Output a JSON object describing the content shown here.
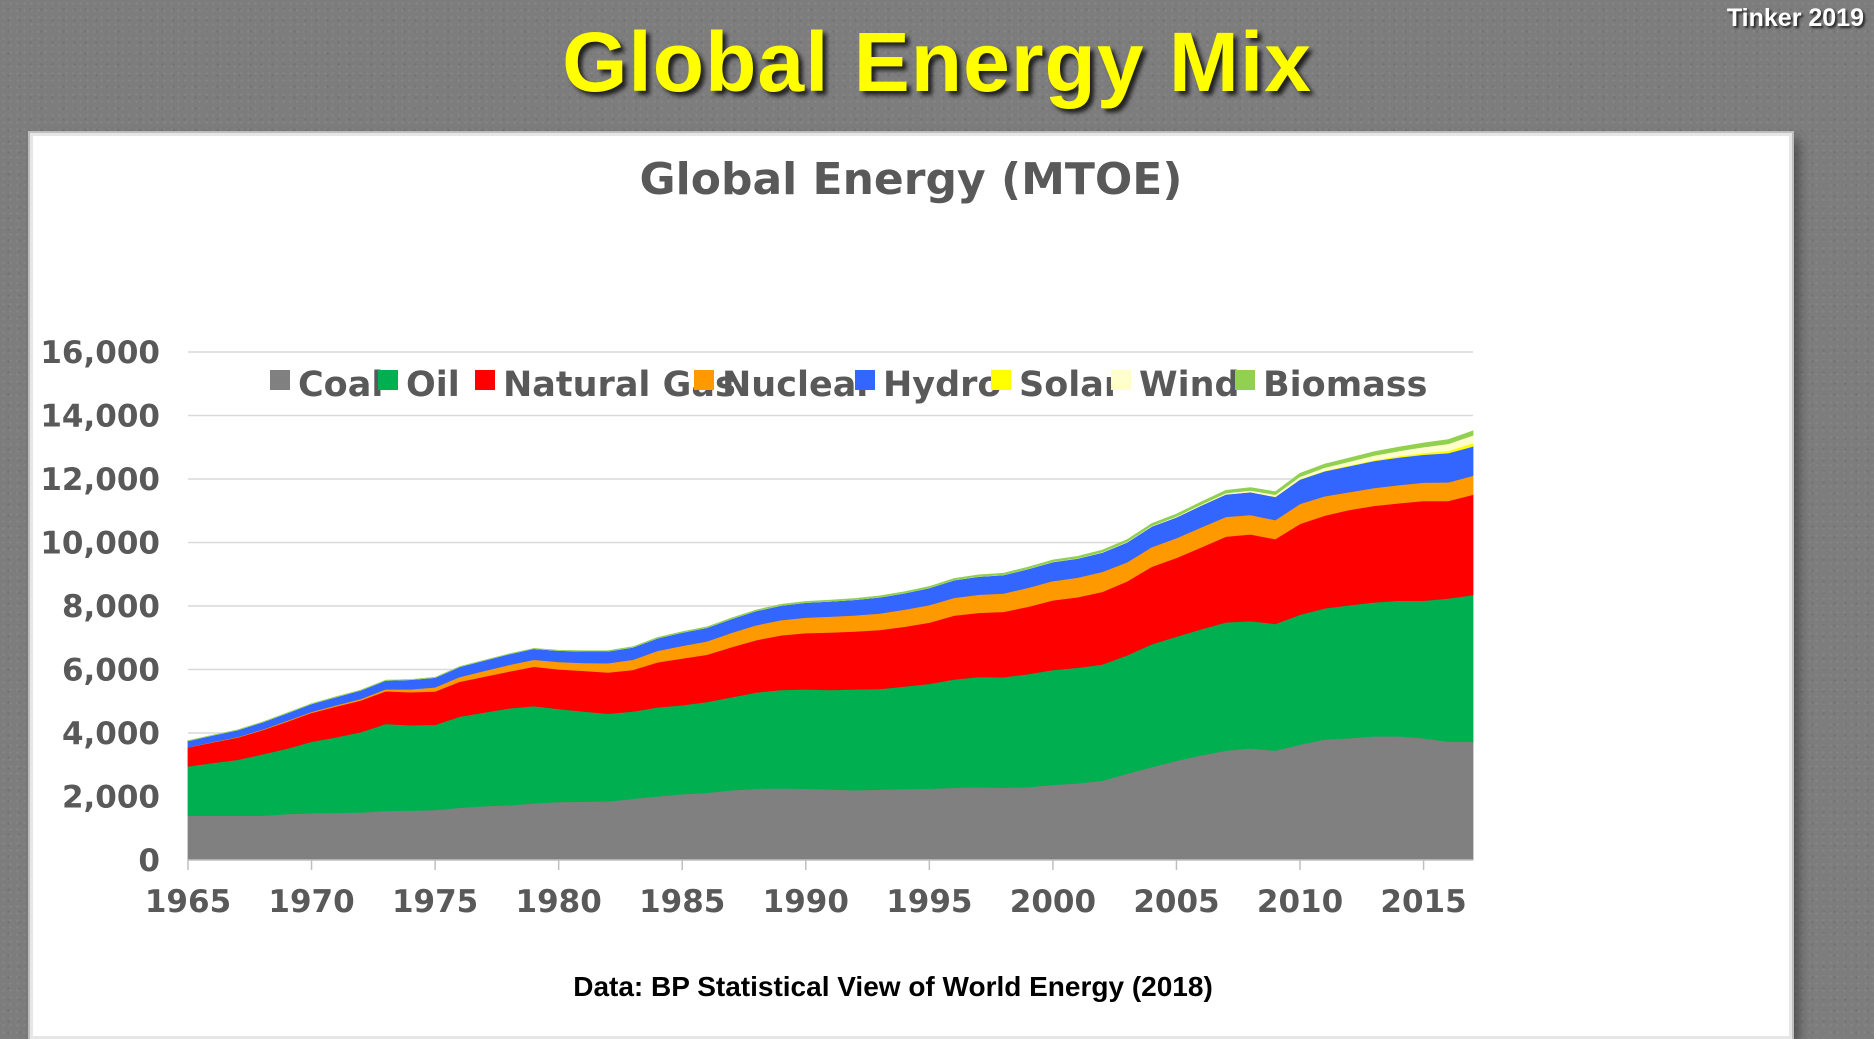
{
  "slide": {
    "title": "Global Energy Mix",
    "author": "Tinker 2019",
    "source": "Data: BP Statistical View of World Energy (2018)"
  },
  "chart_data": {
    "type": "area",
    "stacked": true,
    "title": "Global Energy (MTOE)",
    "xlabel": "",
    "ylabel": "",
    "xlim": [
      1965,
      2017
    ],
    "ylim": [
      0,
      16000
    ],
    "yticks": [
      "0",
      "2,000",
      "4,000",
      "6,000",
      "8,000",
      "10,000",
      "12,000",
      "14,000",
      "16,000"
    ],
    "yticks_values": [
      0,
      2000,
      4000,
      6000,
      8000,
      10000,
      12000,
      14000,
      16000
    ],
    "xticks": [
      "1965",
      "1970",
      "1975",
      "1980",
      "1985",
      "1990",
      "1995",
      "2000",
      "2005",
      "2010",
      "2015"
    ],
    "xticks_values": [
      1965,
      1970,
      1975,
      1980,
      1985,
      1990,
      1995,
      2000,
      2005,
      2010,
      2015
    ],
    "grid": "horizontal",
    "legend_position": "top",
    "x": [
      1965,
      1966,
      1967,
      1968,
      1969,
      1970,
      1971,
      1972,
      1973,
      1974,
      1975,
      1976,
      1977,
      1978,
      1979,
      1980,
      1981,
      1982,
      1983,
      1984,
      1985,
      1986,
      1987,
      1988,
      1989,
      1990,
      1991,
      1992,
      1993,
      1994,
      1995,
      1996,
      1997,
      1998,
      1999,
      2000,
      2001,
      2002,
      2003,
      2004,
      2005,
      2006,
      2007,
      2008,
      2009,
      2010,
      2011,
      2012,
      2013,
      2014,
      2015,
      2016,
      2017
    ],
    "series": [
      {
        "name": "Coal",
        "color": "#808080",
        "values": [
          1400,
          1400,
          1400,
          1400,
          1450,
          1480,
          1490,
          1500,
          1550,
          1560,
          1580,
          1650,
          1700,
          1730,
          1790,
          1830,
          1840,
          1850,
          1930,
          2010,
          2080,
          2120,
          2200,
          2250,
          2260,
          2250,
          2230,
          2200,
          2220,
          2240,
          2250,
          2280,
          2300,
          2280,
          2300,
          2370,
          2420,
          2500,
          2720,
          2930,
          3130,
          3300,
          3450,
          3520,
          3450,
          3640,
          3800,
          3840,
          3900,
          3900,
          3840,
          3730,
          3730
        ]
      },
      {
        "name": "Oil",
        "color": "#00b050",
        "values": [
          1550,
          1660,
          1760,
          1930,
          2060,
          2250,
          2380,
          2530,
          2740,
          2690,
          2680,
          2870,
          2950,
          3050,
          3060,
          2930,
          2840,
          2760,
          2750,
          2800,
          2800,
          2860,
          2930,
          3030,
          3100,
          3130,
          3130,
          3180,
          3170,
          3230,
          3300,
          3410,
          3470,
          3480,
          3560,
          3620,
          3640,
          3660,
          3730,
          3870,
          3910,
          3970,
          4040,
          4010,
          3990,
          4090,
          4130,
          4190,
          4220,
          4270,
          4330,
          4510,
          4620
        ]
      },
      {
        "name": "Natural Gas",
        "color": "#ff0000",
        "values": [
          600,
          650,
          700,
          760,
          850,
          910,
          970,
          1000,
          1030,
          1040,
          1050,
          1100,
          1130,
          1160,
          1240,
          1250,
          1280,
          1300,
          1310,
          1420,
          1470,
          1490,
          1580,
          1650,
          1720,
          1770,
          1810,
          1820,
          1860,
          1880,
          1930,
          2010,
          2020,
          2060,
          2120,
          2190,
          2220,
          2290,
          2330,
          2440,
          2480,
          2580,
          2700,
          2730,
          2670,
          2860,
          2920,
          3000,
          3040,
          3070,
          3140,
          3070,
          3160
        ]
      },
      {
        "name": "Nuclear",
        "color": "#ff9900",
        "values": [
          5,
          10,
          15,
          20,
          25,
          30,
          40,
          50,
          60,
          90,
          130,
          150,
          180,
          210,
          220,
          230,
          250,
          290,
          320,
          360,
          400,
          420,
          450,
          470,
          480,
          490,
          500,
          510,
          520,
          540,
          550,
          560,
          570,
          580,
          600,
          610,
          620,
          630,
          600,
          620,
          620,
          630,
          620,
          610,
          600,
          630,
          610,
          560,
          560,
          570,
          580,
          590,
          600
        ]
      },
      {
        "name": "Hydro",
        "color": "#3366ff",
        "values": [
          200,
          210,
          220,
          230,
          240,
          250,
          260,
          270,
          280,
          300,
          310,
          320,
          330,
          340,
          350,
          360,
          370,
          380,
          390,
          400,
          420,
          430,
          440,
          450,
          460,
          470,
          480,
          490,
          510,
          520,
          540,
          560,
          570,
          580,
          590,
          600,
          600,
          610,
          630,
          650,
          660,
          690,
          710,
          720,
          730,
          770,
          790,
          820,
          850,
          870,
          880,
          920,
          920
        ]
      },
      {
        "name": "Solar",
        "color": "#ffff00",
        "values": [
          0,
          0,
          0,
          0,
          0,
          0,
          0,
          0,
          0,
          0,
          0,
          0,
          0,
          0,
          0,
          0,
          0,
          0,
          0,
          0,
          0,
          0,
          0,
          0,
          0,
          0,
          0,
          0,
          0,
          0,
          0,
          0,
          0,
          0,
          0,
          0,
          0,
          0,
          0,
          0,
          0,
          1,
          2,
          3,
          5,
          8,
          14,
          23,
          30,
          45,
          55,
          75,
          100
        ]
      },
      {
        "name": "Wind",
        "color": "#ffffcc",
        "values": [
          0,
          0,
          0,
          0,
          0,
          0,
          0,
          0,
          0,
          0,
          0,
          0,
          0,
          0,
          0,
          0,
          0,
          0,
          0,
          0,
          0,
          0,
          0,
          0,
          1,
          1,
          1,
          1,
          2,
          2,
          2,
          3,
          3,
          4,
          5,
          7,
          9,
          12,
          15,
          19,
          24,
          30,
          38,
          50,
          63,
          78,
          98,
          118,
          143,
          160,
          185,
          215,
          250
        ]
      },
      {
        "name": "Biomass",
        "color": "#92d050",
        "values": [
          0,
          0,
          0,
          0,
          0,
          0,
          0,
          0,
          0,
          0,
          0,
          0,
          0,
          0,
          0,
          0,
          10,
          12,
          14,
          16,
          18,
          20,
          22,
          25,
          28,
          30,
          32,
          34,
          36,
          38,
          40,
          42,
          45,
          48,
          50,
          53,
          55,
          58,
          62,
          66,
          70,
          75,
          80,
          85,
          90,
          100,
          105,
          110,
          115,
          120,
          125,
          130,
          135
        ]
      }
    ]
  }
}
